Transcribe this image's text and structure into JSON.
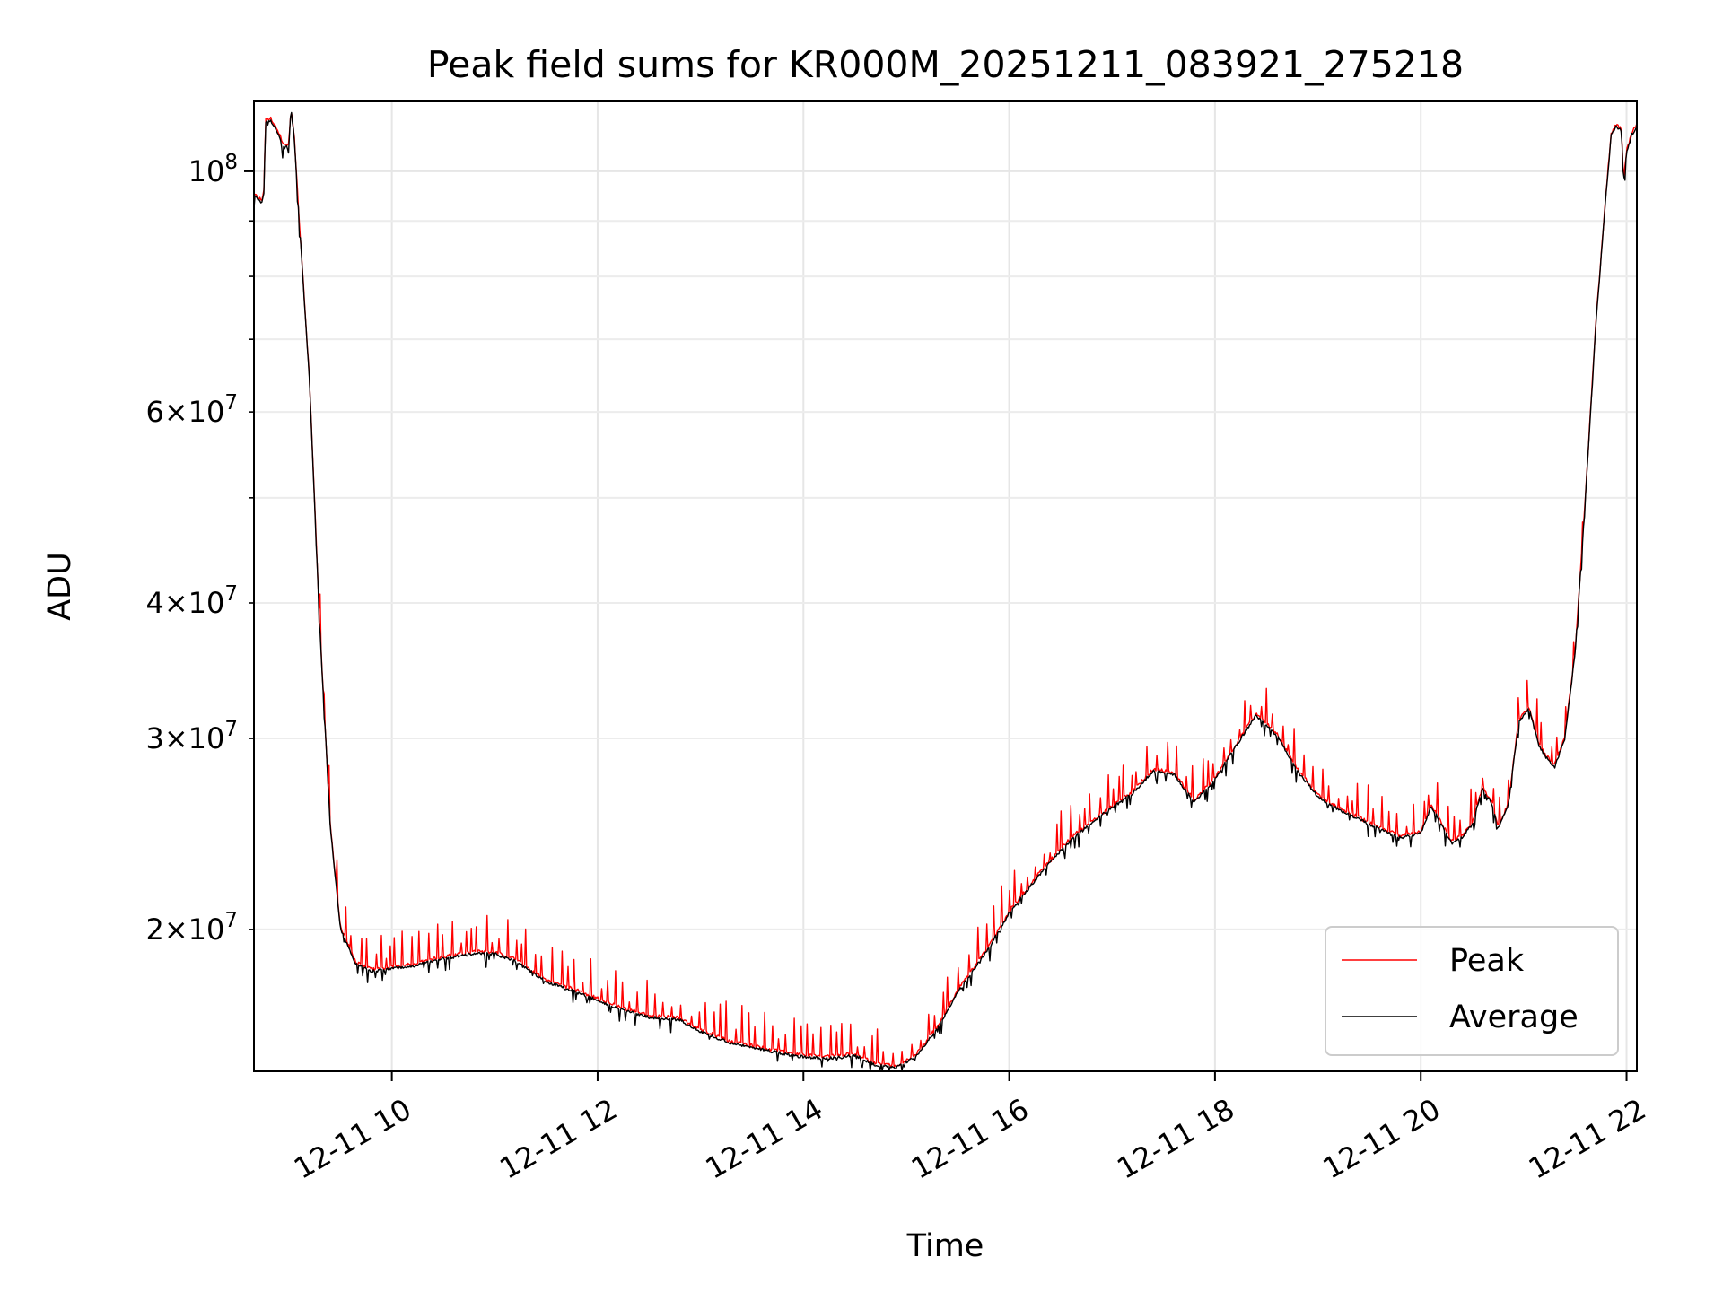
{
  "chart_data": {
    "type": "line",
    "title": "Peak field sums for KR000M_20251211_083921_275218",
    "xlabel": "Time",
    "ylabel": "ADU",
    "y_scale": "log",
    "ylim": [
      14800000,
      116000000
    ],
    "xlim_hours": [
      8.66,
      22.1
    ],
    "grid": true,
    "grid_minor_y": true,
    "legend_position": "lower-right",
    "x_ticks": [
      {
        "value": 10,
        "label": "12-11 10"
      },
      {
        "value": 12,
        "label": "12-11 12"
      },
      {
        "value": 14,
        "label": "12-11 14"
      },
      {
        "value": 16,
        "label": "12-11 16"
      },
      {
        "value": 18,
        "label": "12-11 18"
      },
      {
        "value": 20,
        "label": "12-11 20"
      },
      {
        "value": 22,
        "label": "12-11 22"
      }
    ],
    "y_major_ticks": [
      {
        "value": 100000000,
        "mantissa": "",
        "base": "10",
        "exponent": "8"
      }
    ],
    "y_minor_ticks": [
      {
        "value": 20000000,
        "mantissa": "2",
        "base": "10",
        "exponent": "7"
      },
      {
        "value": 30000000,
        "mantissa": "3",
        "base": "10",
        "exponent": "7"
      },
      {
        "value": 40000000,
        "mantissa": "4",
        "base": "10",
        "exponent": "7"
      },
      {
        "value": 60000000,
        "mantissa": "6",
        "base": "10",
        "exponent": "7"
      }
    ],
    "y_unlabeled_minor": [
      50000000,
      70000000,
      80000000,
      90000000
    ],
    "spike_rule": {
      "start_hour": 9.3,
      "step_hours": 0.07,
      "amplitude_fraction": [
        0.02,
        0.09
      ]
    },
    "series": [
      {
        "name": "Peak",
        "color": "#ff0000",
        "style": "thin line with upward spikes above the average",
        "note": "follows the Average series with intermittent positive spikes"
      },
      {
        "name": "Average",
        "color": "#000000",
        "style": "thin line",
        "points": [
          [
            8.66,
            95000000
          ],
          [
            8.74,
            93500000
          ],
          [
            8.76,
            96000000
          ],
          [
            8.77,
            111000000
          ],
          [
            8.82,
            111500000
          ],
          [
            8.9,
            108000000
          ],
          [
            8.96,
            105000000
          ],
          [
            9.0,
            106000000
          ],
          [
            9.02,
            114000000
          ],
          [
            9.05,
            108000000
          ],
          [
            9.1,
            90000000
          ],
          [
            9.2,
            64000000
          ],
          [
            9.3,
            38000000
          ],
          [
            9.4,
            25000000
          ],
          [
            9.5,
            20000000
          ],
          [
            9.65,
            18600000
          ],
          [
            9.8,
            18300000
          ],
          [
            10.0,
            18400000
          ],
          [
            10.2,
            18500000
          ],
          [
            10.5,
            18800000
          ],
          [
            10.8,
            19000000
          ],
          [
            11.0,
            19000000
          ],
          [
            11.2,
            18700000
          ],
          [
            11.5,
            17900000
          ],
          [
            11.8,
            17500000
          ],
          [
            12.0,
            17200000
          ],
          [
            12.2,
            16900000
          ],
          [
            12.5,
            16600000
          ],
          [
            12.8,
            16500000
          ],
          [
            13.0,
            16100000
          ],
          [
            13.3,
            15700000
          ],
          [
            13.6,
            15500000
          ],
          [
            13.9,
            15300000
          ],
          [
            14.2,
            15200000
          ],
          [
            14.5,
            15300000
          ],
          [
            14.7,
            15000000
          ],
          [
            14.9,
            14900000
          ],
          [
            15.1,
            15300000
          ],
          [
            15.3,
            16200000
          ],
          [
            15.5,
            17500000
          ],
          [
            15.8,
            19200000
          ],
          [
            16.0,
            20700000
          ],
          [
            16.3,
            22500000
          ],
          [
            16.6,
            24200000
          ],
          [
            16.9,
            25500000
          ],
          [
            17.2,
            26700000
          ],
          [
            17.4,
            28000000
          ],
          [
            17.6,
            27800000
          ],
          [
            17.8,
            26200000
          ],
          [
            18.0,
            27500000
          ],
          [
            18.2,
            29500000
          ],
          [
            18.4,
            31500000
          ],
          [
            18.6,
            30200000
          ],
          [
            18.8,
            28000000
          ],
          [
            19.0,
            26500000
          ],
          [
            19.2,
            25800000
          ],
          [
            19.5,
            25000000
          ],
          [
            19.8,
            24300000
          ],
          [
            20.0,
            24500000
          ],
          [
            20.1,
            26000000
          ],
          [
            20.2,
            25000000
          ],
          [
            20.3,
            24000000
          ],
          [
            20.4,
            24300000
          ],
          [
            20.5,
            25000000
          ],
          [
            20.6,
            27000000
          ],
          [
            20.7,
            26000000
          ],
          [
            20.75,
            24800000
          ],
          [
            20.85,
            26000000
          ],
          [
            20.95,
            31000000
          ],
          [
            21.05,
            32000000
          ],
          [
            21.15,
            29500000
          ],
          [
            21.2,
            29000000
          ],
          [
            21.3,
            28200000
          ],
          [
            21.4,
            30000000
          ],
          [
            21.5,
            36000000
          ],
          [
            21.6,
            50000000
          ],
          [
            21.7,
            72000000
          ],
          [
            21.8,
            95000000
          ],
          [
            21.85,
            108000000
          ],
          [
            21.9,
            110000000
          ],
          [
            21.95,
            109000000
          ],
          [
            21.97,
            98000000
          ],
          [
            22.0,
            104000000
          ],
          [
            22.05,
            108000000
          ],
          [
            22.1,
            110000000
          ]
        ]
      }
    ]
  }
}
